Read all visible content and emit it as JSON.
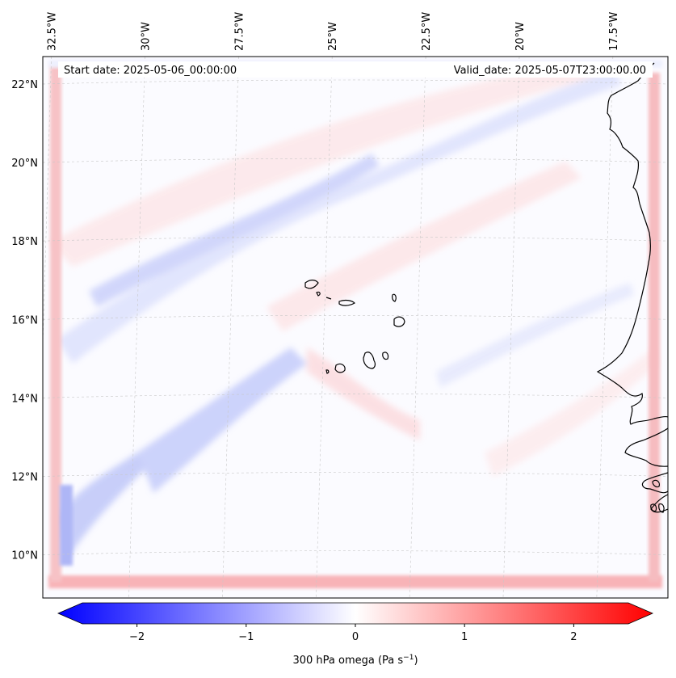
{
  "header": {
    "start_date": "Start date: 2025-05-06_00:00:00",
    "valid_date": "Valid_date: 2025-05-07T23:00:00.00"
  },
  "axes": {
    "lon_ticks": [
      {
        "value": -32.5,
        "label": "32.5°W"
      },
      {
        "value": -30,
        "label": "30°W"
      },
      {
        "value": -27.5,
        "label": "27.5°W"
      },
      {
        "value": -25,
        "label": "25°W"
      },
      {
        "value": -22.5,
        "label": "22.5°W"
      },
      {
        "value": -20,
        "label": "20°W"
      },
      {
        "value": -17.5,
        "label": "17.5°W"
      }
    ],
    "lat_ticks": [
      {
        "value": 22,
        "label": "22°N"
      },
      {
        "value": 20,
        "label": "20°N"
      },
      {
        "value": 18,
        "label": "18°N"
      },
      {
        "value": 16,
        "label": "16°N"
      },
      {
        "value": 14,
        "label": "14°N"
      },
      {
        "value": 12,
        "label": "12°N"
      },
      {
        "value": 10,
        "label": "10°N"
      }
    ],
    "lon_range": [
      -32.6,
      -15.9
    ],
    "lat_range": [
      8.9,
      22.7
    ]
  },
  "colorbar": {
    "label": "300 hPa omega (Pa s",
    "label_sup": "−1",
    "label_end": ")",
    "ticks": [
      {
        "value": -2,
        "label": "−2"
      },
      {
        "value": -1,
        "label": "−1"
      },
      {
        "value": 0,
        "label": "0"
      },
      {
        "value": 1,
        "label": "1"
      },
      {
        "value": 2,
        "label": "2"
      }
    ],
    "range": [
      -2.5,
      2.5
    ],
    "colors": {
      "negative": "#0000ff",
      "zero": "#ffffff",
      "positive": "#ff0000"
    }
  },
  "colors": {
    "field_background": "#fbfbff",
    "coastline": "#000000",
    "gridline": "#bbbbbb"
  }
}
